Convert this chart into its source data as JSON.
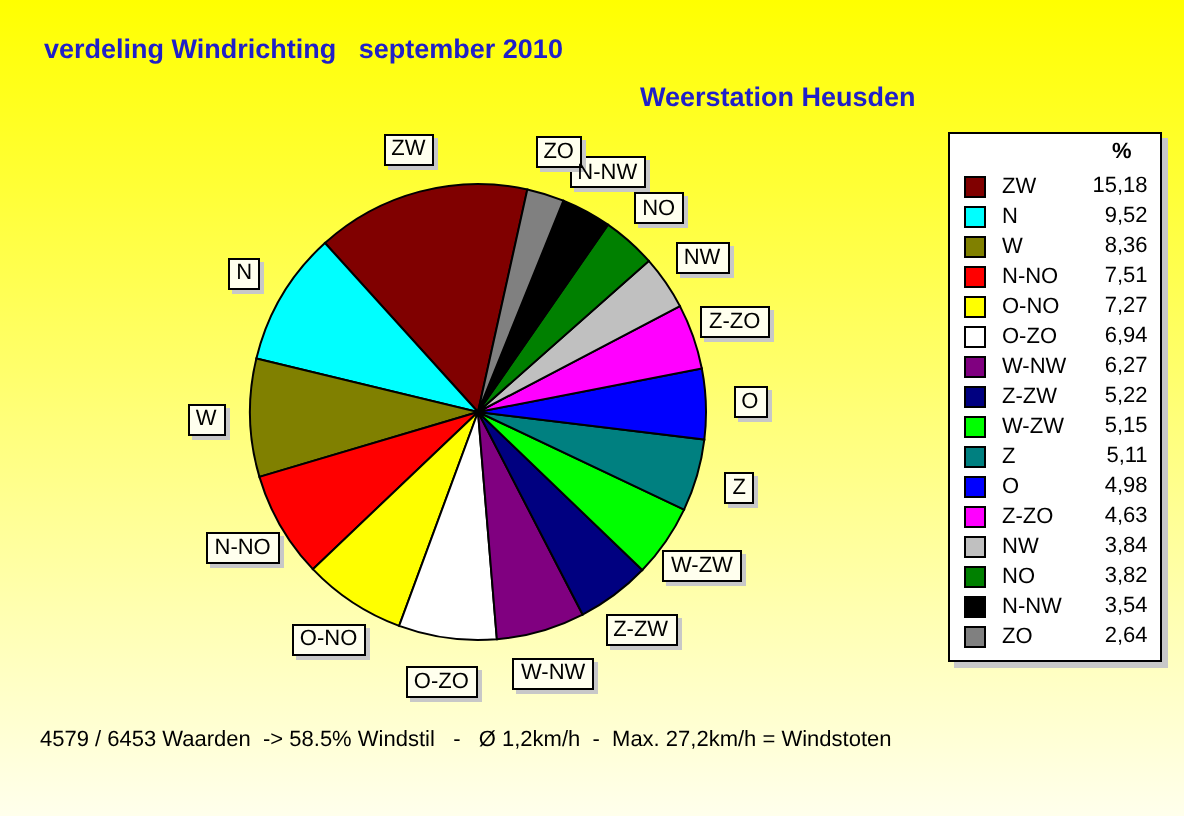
{
  "chart_data": {
    "type": "pie",
    "title": "verdeling Windrichting   september 2010",
    "subtitle": "Weerstation Heusden",
    "categories": [
      "ZW",
      "N",
      "W",
      "N-NO",
      "O-NO",
      "O-ZO",
      "W-NW",
      "Z-ZW",
      "W-ZW",
      "Z",
      "O",
      "Z-ZO",
      "NW",
      "NO",
      "N-NW",
      "ZO"
    ],
    "values": [
      15.18,
      9.52,
      8.36,
      7.51,
      7.27,
      6.94,
      6.27,
      5.22,
      5.15,
      5.11,
      4.98,
      4.63,
      3.84,
      3.82,
      3.54,
      2.64
    ],
    "value_labels": [
      "15,18",
      "9,52",
      "8,36",
      "7,51",
      "7,27",
      "6,94",
      "6,27",
      "5,22",
      "5,15",
      "5,11",
      "4,98",
      "4,63",
      "3,84",
      "3,82",
      "3,54",
      "2,64"
    ],
    "colors": [
      "#800000",
      "#00ffff",
      "#808000",
      "#ff0000",
      "#ffff00",
      "#ffffff",
      "#800080",
      "#000080",
      "#00ff00",
      "#008080",
      "#0000ff",
      "#ff00ff",
      "#c0c0c0",
      "#008000",
      "#000000",
      "#808080"
    ],
    "legend": "right",
    "legend_title": "%",
    "annotations": [
      "4579 / 6453 Waarden  -> 58.5% Windstil   -   Ø 1,2km/h  -  Max. 27,2km/h = Windstoten"
    ]
  }
}
